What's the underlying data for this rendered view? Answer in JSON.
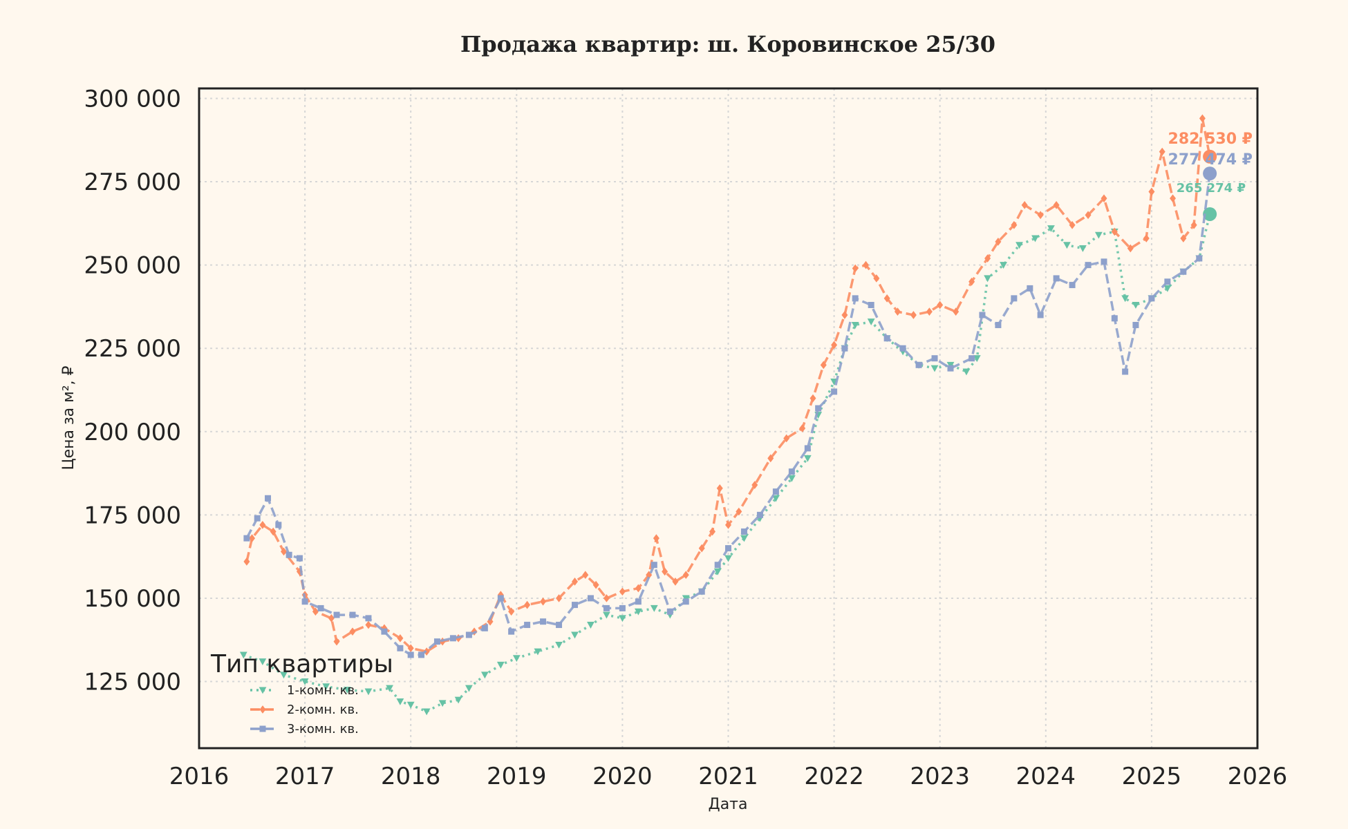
{
  "chart_data": {
    "type": "line",
    "title": "Продажа квартир: ш. Коровинское 25/30",
    "xlabel": "Дата",
    "ylabel": "Цена за м², ₽",
    "xlim": [
      2016,
      2026
    ],
    "ylim": [
      105000,
      303000
    ],
    "x_ticks": [
      "2016",
      "2017",
      "2018",
      "2019",
      "2020",
      "2021",
      "2022",
      "2023",
      "2024",
      "2025",
      "2026"
    ],
    "y_ticks": [
      {
        "value": 125000,
        "label": "125 000"
      },
      {
        "value": 150000,
        "label": "150 000"
      },
      {
        "value": 175000,
        "label": "175 000"
      },
      {
        "value": 200000,
        "label": "200 000"
      },
      {
        "value": 225000,
        "label": "225 000"
      },
      {
        "value": 250000,
        "label": "250 000"
      },
      {
        "value": 275000,
        "label": "275 000"
      },
      {
        "value": 300000,
        "label": "300 000"
      }
    ],
    "grid": true,
    "legend": {
      "title": "Тип квартиры",
      "placement": "bottom-left"
    },
    "series": [
      {
        "name": "1-комн. кв.",
        "color": "#66c2a5",
        "dash": "dotted",
        "marker": "triangle-down",
        "end_label": "265 274 ₽",
        "end_value": 265274,
        "points": [
          [
            2016.42,
            133000
          ],
          [
            2016.6,
            131000
          ],
          [
            2016.8,
            127000
          ],
          [
            2017.0,
            125000
          ],
          [
            2017.2,
            123500
          ],
          [
            2017.4,
            122500
          ],
          [
            2017.6,
            122000
          ],
          [
            2017.8,
            123000
          ],
          [
            2017.9,
            119000
          ],
          [
            2018.0,
            118000
          ],
          [
            2018.15,
            116000
          ],
          [
            2018.3,
            118500
          ],
          [
            2018.45,
            119500
          ],
          [
            2018.55,
            123000
          ],
          [
            2018.7,
            127000
          ],
          [
            2018.85,
            130000
          ],
          [
            2019.0,
            132000
          ],
          [
            2019.2,
            134000
          ],
          [
            2019.4,
            136000
          ],
          [
            2019.55,
            139000
          ],
          [
            2019.7,
            142000
          ],
          [
            2019.85,
            145000
          ],
          [
            2020.0,
            144000
          ],
          [
            2020.15,
            146000
          ],
          [
            2020.3,
            147000
          ],
          [
            2020.45,
            145000
          ],
          [
            2020.6,
            150000
          ],
          [
            2020.75,
            152000
          ],
          [
            2020.9,
            158000
          ],
          [
            2021.0,
            162000
          ],
          [
            2021.15,
            168000
          ],
          [
            2021.3,
            174000
          ],
          [
            2021.45,
            180000
          ],
          [
            2021.6,
            186000
          ],
          [
            2021.75,
            192000
          ],
          [
            2021.85,
            205000
          ],
          [
            2022.0,
            215000
          ],
          [
            2022.1,
            225000
          ],
          [
            2022.2,
            232000
          ],
          [
            2022.35,
            233000
          ],
          [
            2022.5,
            228000
          ],
          [
            2022.65,
            224000
          ],
          [
            2022.8,
            220000
          ],
          [
            2022.95,
            219000
          ],
          [
            2023.1,
            220000
          ],
          [
            2023.25,
            218000
          ],
          [
            2023.35,
            222000
          ],
          [
            2023.45,
            246000
          ],
          [
            2023.6,
            250000
          ],
          [
            2023.75,
            256000
          ],
          [
            2023.9,
            258000
          ],
          [
            2024.05,
            261000
          ],
          [
            2024.2,
            256000
          ],
          [
            2024.35,
            255000
          ],
          [
            2024.5,
            259000
          ],
          [
            2024.65,
            260000
          ],
          [
            2024.75,
            240000
          ],
          [
            2024.85,
            238000
          ],
          [
            2025.0,
            240000
          ],
          [
            2025.15,
            243000
          ],
          [
            2025.3,
            248000
          ],
          [
            2025.45,
            252000
          ],
          [
            2025.55,
            265274
          ]
        ]
      },
      {
        "name": "2-комн. кв.",
        "color": "#fc8d62",
        "dash": "dashed",
        "marker": "diamond",
        "end_label": "282 530 ₽",
        "end_value": 282530,
        "points": [
          [
            2016.45,
            161000
          ],
          [
            2016.5,
            168000
          ],
          [
            2016.6,
            172000
          ],
          [
            2016.7,
            170000
          ],
          [
            2016.8,
            164000
          ],
          [
            2016.95,
            158000
          ],
          [
            2017.0,
            151000
          ],
          [
            2017.1,
            146000
          ],
          [
            2017.25,
            144000
          ],
          [
            2017.3,
            137000
          ],
          [
            2017.45,
            140000
          ],
          [
            2017.6,
            142000
          ],
          [
            2017.75,
            141000
          ],
          [
            2017.9,
            138000
          ],
          [
            2018.0,
            135000
          ],
          [
            2018.15,
            134000
          ],
          [
            2018.3,
            137000
          ],
          [
            2018.45,
            138000
          ],
          [
            2018.6,
            140000
          ],
          [
            2018.75,
            143000
          ],
          [
            2018.85,
            151000
          ],
          [
            2018.95,
            146000
          ],
          [
            2019.1,
            148000
          ],
          [
            2019.25,
            149000
          ],
          [
            2019.4,
            150000
          ],
          [
            2019.55,
            155000
          ],
          [
            2019.65,
            157000
          ],
          [
            2019.75,
            154000
          ],
          [
            2019.85,
            150000
          ],
          [
            2020.0,
            152000
          ],
          [
            2020.15,
            153000
          ],
          [
            2020.25,
            157000
          ],
          [
            2020.32,
            168000
          ],
          [
            2020.4,
            158000
          ],
          [
            2020.5,
            155000
          ],
          [
            2020.6,
            157000
          ],
          [
            2020.75,
            165000
          ],
          [
            2020.85,
            170000
          ],
          [
            2020.92,
            183000
          ],
          [
            2021.0,
            172000
          ],
          [
            2021.1,
            176000
          ],
          [
            2021.25,
            184000
          ],
          [
            2021.4,
            192000
          ],
          [
            2021.55,
            198000
          ],
          [
            2021.7,
            201000
          ],
          [
            2021.8,
            210000
          ],
          [
            2021.9,
            220000
          ],
          [
            2022.0,
            226000
          ],
          [
            2022.1,
            235000
          ],
          [
            2022.2,
            249000
          ],
          [
            2022.3,
            250000
          ],
          [
            2022.4,
            246000
          ],
          [
            2022.5,
            240000
          ],
          [
            2022.6,
            236000
          ],
          [
            2022.75,
            235000
          ],
          [
            2022.9,
            236000
          ],
          [
            2023.0,
            238000
          ],
          [
            2023.15,
            236000
          ],
          [
            2023.3,
            245000
          ],
          [
            2023.45,
            252000
          ],
          [
            2023.55,
            257000
          ],
          [
            2023.7,
            262000
          ],
          [
            2023.8,
            268000
          ],
          [
            2023.95,
            265000
          ],
          [
            2024.1,
            268000
          ],
          [
            2024.25,
            262000
          ],
          [
            2024.4,
            265000
          ],
          [
            2024.55,
            270000
          ],
          [
            2024.65,
            260000
          ],
          [
            2024.8,
            255000
          ],
          [
            2024.95,
            258000
          ],
          [
            2025.0,
            272000
          ],
          [
            2025.1,
            284000
          ],
          [
            2025.2,
            270000
          ],
          [
            2025.3,
            258000
          ],
          [
            2025.4,
            262000
          ],
          [
            2025.48,
            294000
          ],
          [
            2025.55,
            282530
          ]
        ]
      },
      {
        "name": "3-комн. кв.",
        "color": "#8da0cb",
        "dash": "dashed",
        "marker": "square",
        "end_label": "277 474 ₽",
        "end_value": 277474,
        "points": [
          [
            2016.45,
            168000
          ],
          [
            2016.55,
            174000
          ],
          [
            2016.65,
            180000
          ],
          [
            2016.75,
            172000
          ],
          [
            2016.85,
            163000
          ],
          [
            2016.95,
            162000
          ],
          [
            2017.0,
            149000
          ],
          [
            2017.15,
            147000
          ],
          [
            2017.3,
            145000
          ],
          [
            2017.45,
            145000
          ],
          [
            2017.6,
            144000
          ],
          [
            2017.75,
            140000
          ],
          [
            2017.9,
            135000
          ],
          [
            2018.0,
            133000
          ],
          [
            2018.1,
            133000
          ],
          [
            2018.25,
            137000
          ],
          [
            2018.4,
            138000
          ],
          [
            2018.55,
            139000
          ],
          [
            2018.7,
            141000
          ],
          [
            2018.85,
            150000
          ],
          [
            2018.95,
            140000
          ],
          [
            2019.1,
            142000
          ],
          [
            2019.25,
            143000
          ],
          [
            2019.4,
            142000
          ],
          [
            2019.55,
            148000
          ],
          [
            2019.7,
            150000
          ],
          [
            2019.85,
            147000
          ],
          [
            2020.0,
            147000
          ],
          [
            2020.15,
            149000
          ],
          [
            2020.3,
            160000
          ],
          [
            2020.45,
            146000
          ],
          [
            2020.6,
            149000
          ],
          [
            2020.75,
            152000
          ],
          [
            2020.9,
            160000
          ],
          [
            2021.0,
            165000
          ],
          [
            2021.15,
            170000
          ],
          [
            2021.3,
            175000
          ],
          [
            2021.45,
            182000
          ],
          [
            2021.6,
            188000
          ],
          [
            2021.75,
            195000
          ],
          [
            2021.85,
            207000
          ],
          [
            2022.0,
            212000
          ],
          [
            2022.1,
            225000
          ],
          [
            2022.2,
            240000
          ],
          [
            2022.35,
            238000
          ],
          [
            2022.5,
            228000
          ],
          [
            2022.65,
            225000
          ],
          [
            2022.8,
            220000
          ],
          [
            2022.95,
            222000
          ],
          [
            2023.1,
            219000
          ],
          [
            2023.3,
            222000
          ],
          [
            2023.4,
            235000
          ],
          [
            2023.55,
            232000
          ],
          [
            2023.7,
            240000
          ],
          [
            2023.85,
            243000
          ],
          [
            2023.95,
            235000
          ],
          [
            2024.1,
            246000
          ],
          [
            2024.25,
            244000
          ],
          [
            2024.4,
            250000
          ],
          [
            2024.55,
            251000
          ],
          [
            2024.65,
            234000
          ],
          [
            2024.75,
            218000
          ],
          [
            2024.85,
            232000
          ],
          [
            2025.0,
            240000
          ],
          [
            2025.15,
            245000
          ],
          [
            2025.3,
            248000
          ],
          [
            2025.45,
            252000
          ],
          [
            2025.55,
            277474
          ]
        ]
      }
    ]
  }
}
